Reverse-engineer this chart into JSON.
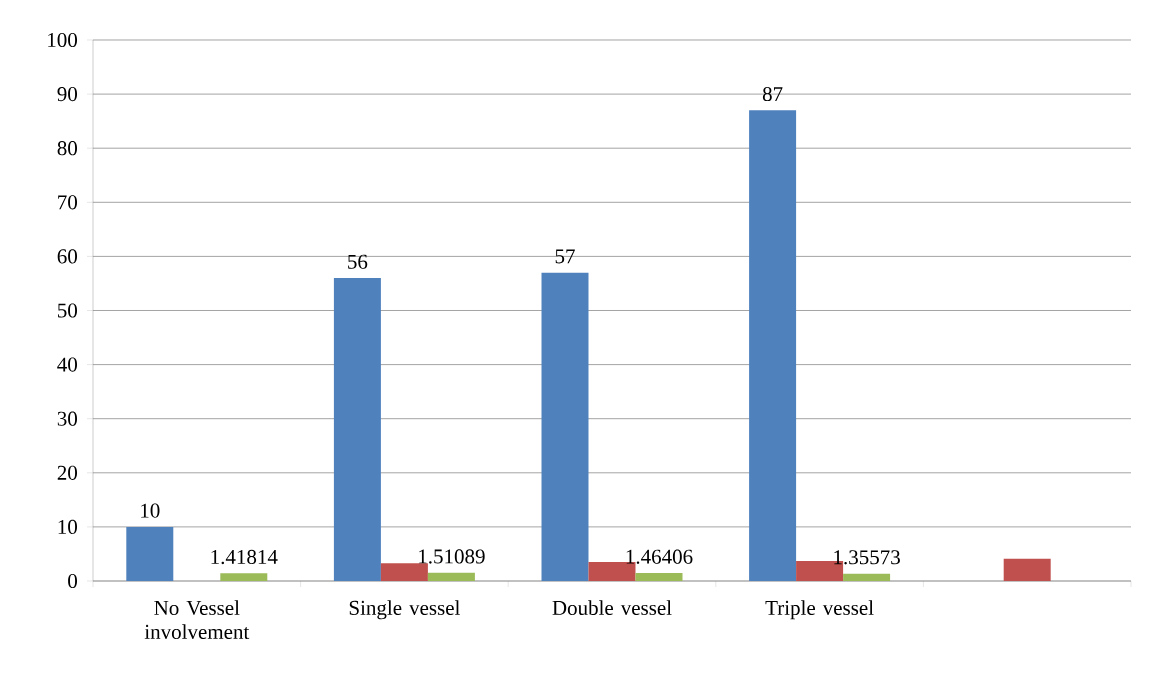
{
  "chart_data": {
    "type": "bar",
    "categories": [
      "No Vessel involvement",
      "Single vessel",
      "Double vessel",
      "Triple vessel",
      null
    ],
    "series": [
      {
        "color": "#4f81bd",
        "values": [
          10,
          56,
          57,
          87,
          null
        ],
        "value_labels": [
          "10",
          "56",
          "57",
          "87",
          null
        ]
      },
      {
        "color": "#c0504d",
        "values": [
          null,
          3.3,
          3.5,
          3.7,
          4.1
        ]
      },
      {
        "color": "#9bbb59",
        "values": [
          1.41814,
          1.51089,
          1.46406,
          1.35573,
          null
        ],
        "value_labels": [
          "1.41814",
          "1.51089",
          "1.46406",
          "1.35573",
          null
        ]
      }
    ],
    "ylim": [
      0,
      100
    ],
    "yticks": [
      0,
      10,
      20,
      30,
      40,
      50,
      60,
      70,
      80,
      90,
      100
    ],
    "grid": "y"
  }
}
